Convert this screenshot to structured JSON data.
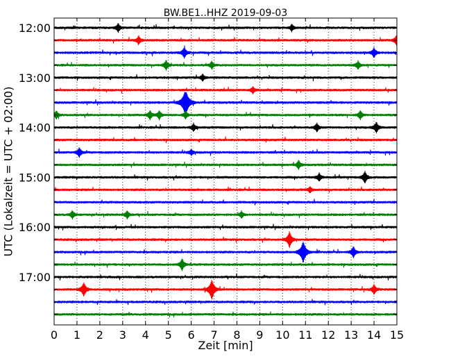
{
  "chart_data": {
    "type": "line",
    "title": "BW.BE1..HHZ 2019-09-03",
    "xlabel": "Zeit  [min]",
    "ylabel": "UTC (Lokalzeit = UTC + 02:00)",
    "xlim": [
      0,
      15
    ],
    "x_ticks": [
      "0",
      "1",
      "2",
      "3",
      "4",
      "5",
      "6",
      "7",
      "8",
      "9",
      "10",
      "11",
      "12",
      "13",
      "14",
      "15"
    ],
    "y_tick_labels": [
      "12:00",
      "13:00",
      "14:00",
      "15:00",
      "16:00",
      "17:00"
    ],
    "traces_start": "12:00",
    "trace_interval_minutes": 15,
    "trace_count": 24,
    "trace_colors": [
      "#000000",
      "#ff0000",
      "#0000ff",
      "#008000"
    ],
    "grid": "vertical dotted",
    "events": [
      {
        "trace": 0,
        "minute": 2.8,
        "amp": 0.45
      },
      {
        "trace": 0,
        "minute": 10.4,
        "amp": 0.35
      },
      {
        "trace": 1,
        "minute": 3.7,
        "amp": 0.45
      },
      {
        "trace": 1,
        "minute": 15.0,
        "amp": 0.6
      },
      {
        "trace": 2,
        "minute": 5.7,
        "amp": 0.55
      },
      {
        "trace": 2,
        "minute": 14.0,
        "amp": 0.5
      },
      {
        "trace": 3,
        "minute": 4.9,
        "amp": 0.5
      },
      {
        "trace": 3,
        "minute": 6.9,
        "amp": 0.4
      },
      {
        "trace": 3,
        "minute": 13.3,
        "amp": 0.4
      },
      {
        "trace": 4,
        "minute": 6.5,
        "amp": 0.35
      },
      {
        "trace": 5,
        "minute": 8.7,
        "amp": 0.35
      },
      {
        "trace": 6,
        "minute": 5.75,
        "amp": 1.4
      },
      {
        "trace": 7,
        "minute": 0.1,
        "amp": 0.4
      },
      {
        "trace": 7,
        "minute": 4.2,
        "amp": 0.45
      },
      {
        "trace": 7,
        "minute": 4.6,
        "amp": 0.45
      },
      {
        "trace": 7,
        "minute": 5.75,
        "amp": 0.4
      },
      {
        "trace": 7,
        "minute": 13.4,
        "amp": 0.45
      },
      {
        "trace": 8,
        "minute": 6.1,
        "amp": 0.4
      },
      {
        "trace": 8,
        "minute": 11.5,
        "amp": 0.45
      },
      {
        "trace": 8,
        "minute": 14.1,
        "amp": 0.55
      },
      {
        "trace": 10,
        "minute": 1.1,
        "amp": 0.5
      },
      {
        "trace": 10,
        "minute": 6.0,
        "amp": 0.3
      },
      {
        "trace": 11,
        "minute": 10.7,
        "amp": 0.45
      },
      {
        "trace": 12,
        "minute": 11.6,
        "amp": 0.4
      },
      {
        "trace": 12,
        "minute": 13.6,
        "amp": 0.6
      },
      {
        "trace": 13,
        "minute": 11.2,
        "amp": 0.3
      },
      {
        "trace": 15,
        "minute": 0.8,
        "amp": 0.4
      },
      {
        "trace": 15,
        "minute": 3.2,
        "amp": 0.4
      },
      {
        "trace": 15,
        "minute": 8.2,
        "amp": 0.35
      },
      {
        "trace": 17,
        "minute": 10.3,
        "amp": 0.8
      },
      {
        "trace": 18,
        "minute": 10.9,
        "amp": 1.1
      },
      {
        "trace": 18,
        "minute": 13.1,
        "amp": 0.55
      },
      {
        "trace": 19,
        "minute": 5.6,
        "amp": 0.6
      },
      {
        "trace": 21,
        "minute": 1.3,
        "amp": 0.7
      },
      {
        "trace": 21,
        "minute": 6.9,
        "amp": 1.0
      },
      {
        "trace": 21,
        "minute": 14.0,
        "amp": 0.5
      }
    ]
  }
}
